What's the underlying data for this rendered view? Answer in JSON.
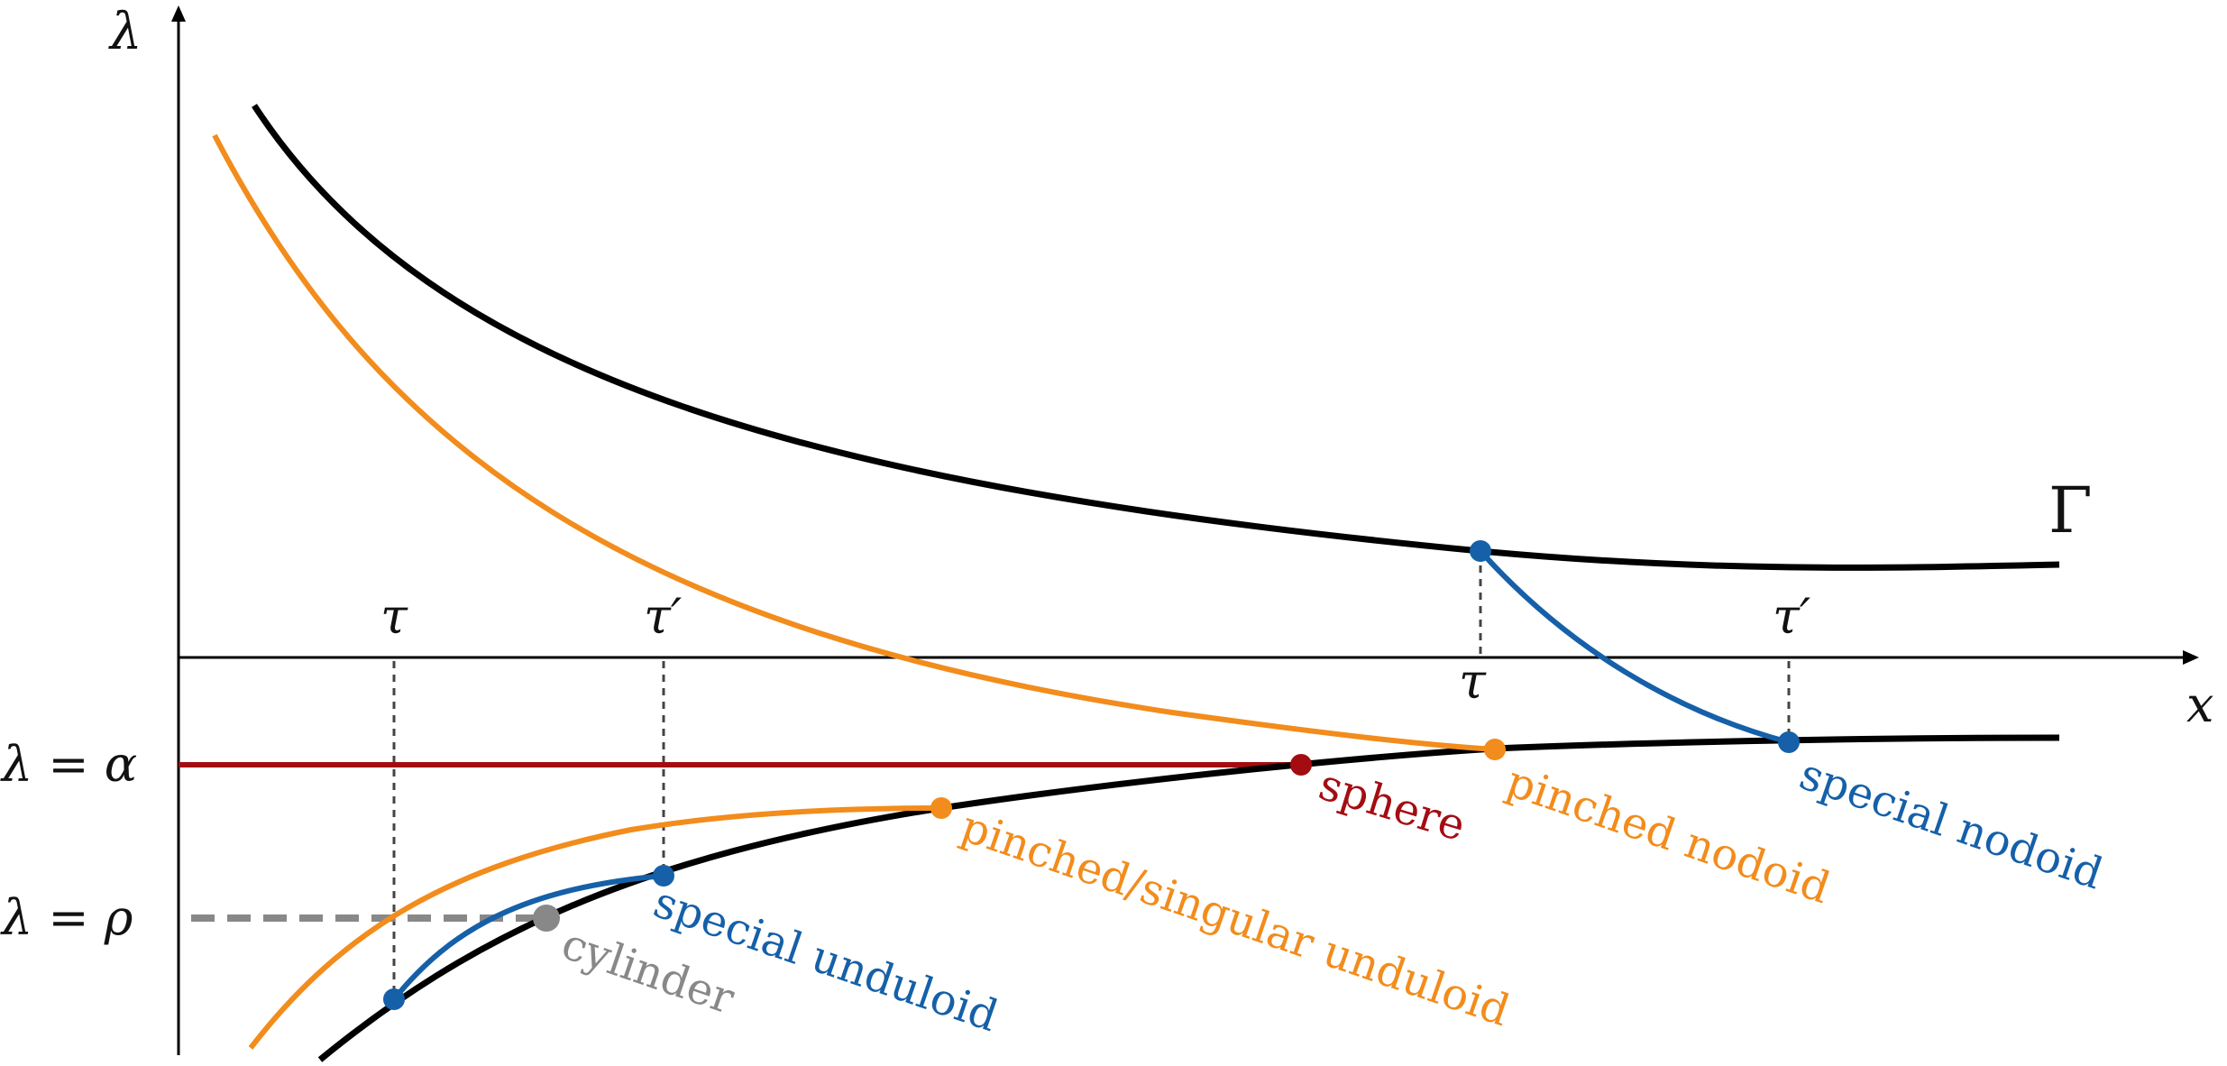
{
  "axes": {
    "y_label": "λ",
    "x_label": "x"
  },
  "levels": {
    "alpha": "λ = α",
    "rho": "λ = ρ"
  },
  "gamma_label": "Γ",
  "ticks": {
    "tau_left": "τ",
    "tau_prime_left": "τ′",
    "tau_right": "τ",
    "tau_prime_right": "τ′"
  },
  "points": {
    "sphere": "sphere",
    "pinched_nodoid": "pinched nodoid",
    "special_nodoid": "special nodoid",
    "pinched_singular_unduloid": "pinched/singular unduloid",
    "special_unduloid": "special unduloid",
    "cylinder": "cylinder"
  },
  "colors": {
    "black": "#000000",
    "orange": "#f28c1c",
    "blue": "#1560a8",
    "red": "#a30d12",
    "gray": "#888888"
  }
}
